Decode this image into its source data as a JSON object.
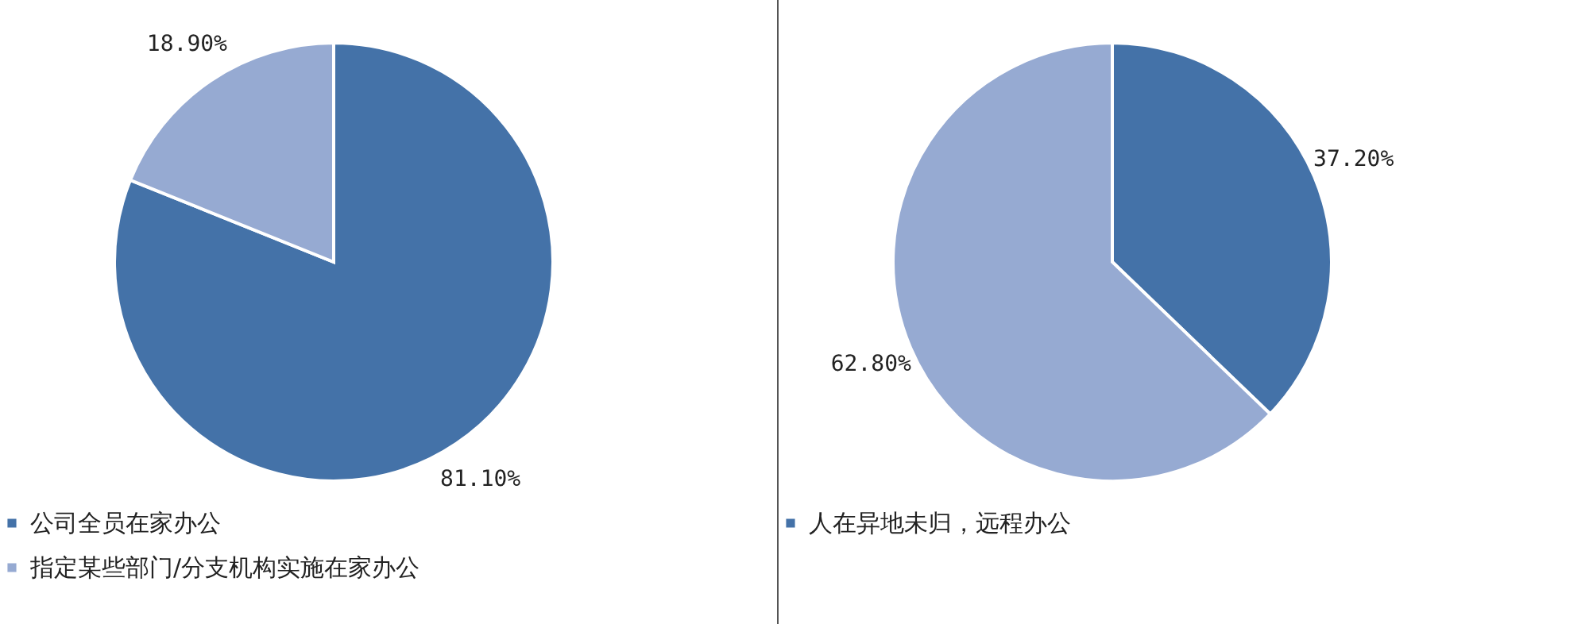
{
  "chart_data": [
    {
      "type": "pie",
      "categories": [
        "公司全员在家办公",
        "指定某些部门/分支机构实施在家办公"
      ],
      "values": [
        81.1,
        18.9
      ],
      "colors": [
        "#4472a8",
        "#96aad2"
      ],
      "value_labels": [
        "81.10%",
        "18.90%"
      ],
      "legend": "bottom"
    },
    {
      "type": "pie",
      "categories": [
        "人在异地未归，远程办公",
        null
      ],
      "values": [
        37.2,
        62.8
      ],
      "colors": [
        "#4472a8",
        "#96aad2"
      ],
      "value_labels": [
        "37.20%",
        "62.80%"
      ],
      "legend": "bottom"
    }
  ]
}
